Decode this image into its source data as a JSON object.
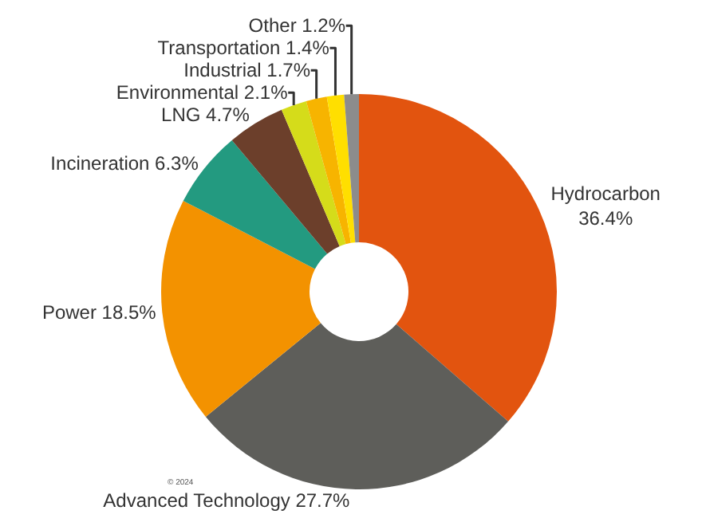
{
  "chart_data": {
    "type": "donut",
    "categories": [
      "Hydrocarbon",
      "Advanced Technology",
      "Power",
      "Incineration",
      "LNG",
      "Environmental",
      "Industrial",
      "Transportation",
      "Other"
    ],
    "values": [
      36.4,
      27.7,
      18.5,
      6.3,
      4.7,
      2.1,
      1.7,
      1.4,
      1.2
    ],
    "colors": [
      "#e2540f",
      "#5e5e5a",
      "#f39200",
      "#239a80",
      "#6c3f2b",
      "#d5dc1a",
      "#f7b400",
      "#ffdf00",
      "#8c8c8c"
    ],
    "value_labels": [
      "36.4%",
      "27.7%",
      "18.5%",
      "6.3%",
      "4.7%",
      "2.1%",
      "1.7%",
      "1.4%",
      "1.2%"
    ],
    "legend": false,
    "annotations": [
      "© 2024"
    ]
  }
}
